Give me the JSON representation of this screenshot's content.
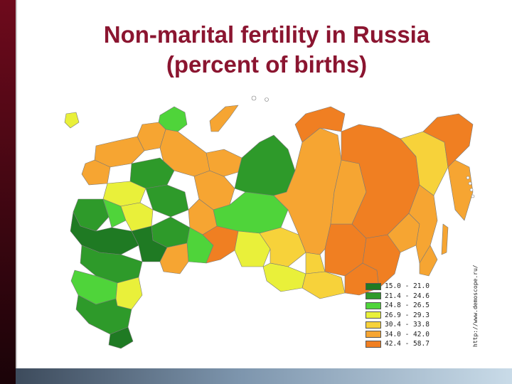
{
  "title": {
    "line1": "Non-marital fertility in Russia",
    "line2": "(percent of births)"
  },
  "source": "http://www.demoscope.ru/",
  "legend": [
    {
      "label": "15.0 - 21.0",
      "color": "#1f7a23"
    },
    {
      "label": "21.4 - 24.6",
      "color": "#2e9a2a"
    },
    {
      "label": "24.8 - 26.5",
      "color": "#4fd43a"
    },
    {
      "label": "26.9 - 29.3",
      "color": "#e9f03a"
    },
    {
      "label": "30.4 - 33.8",
      "color": "#f7d23a"
    },
    {
      "label": "34.0 - 42.0",
      "color": "#f6a532"
    },
    {
      "label": "42.4 - 58.7",
      "color": "#f07f22"
    }
  ]
}
